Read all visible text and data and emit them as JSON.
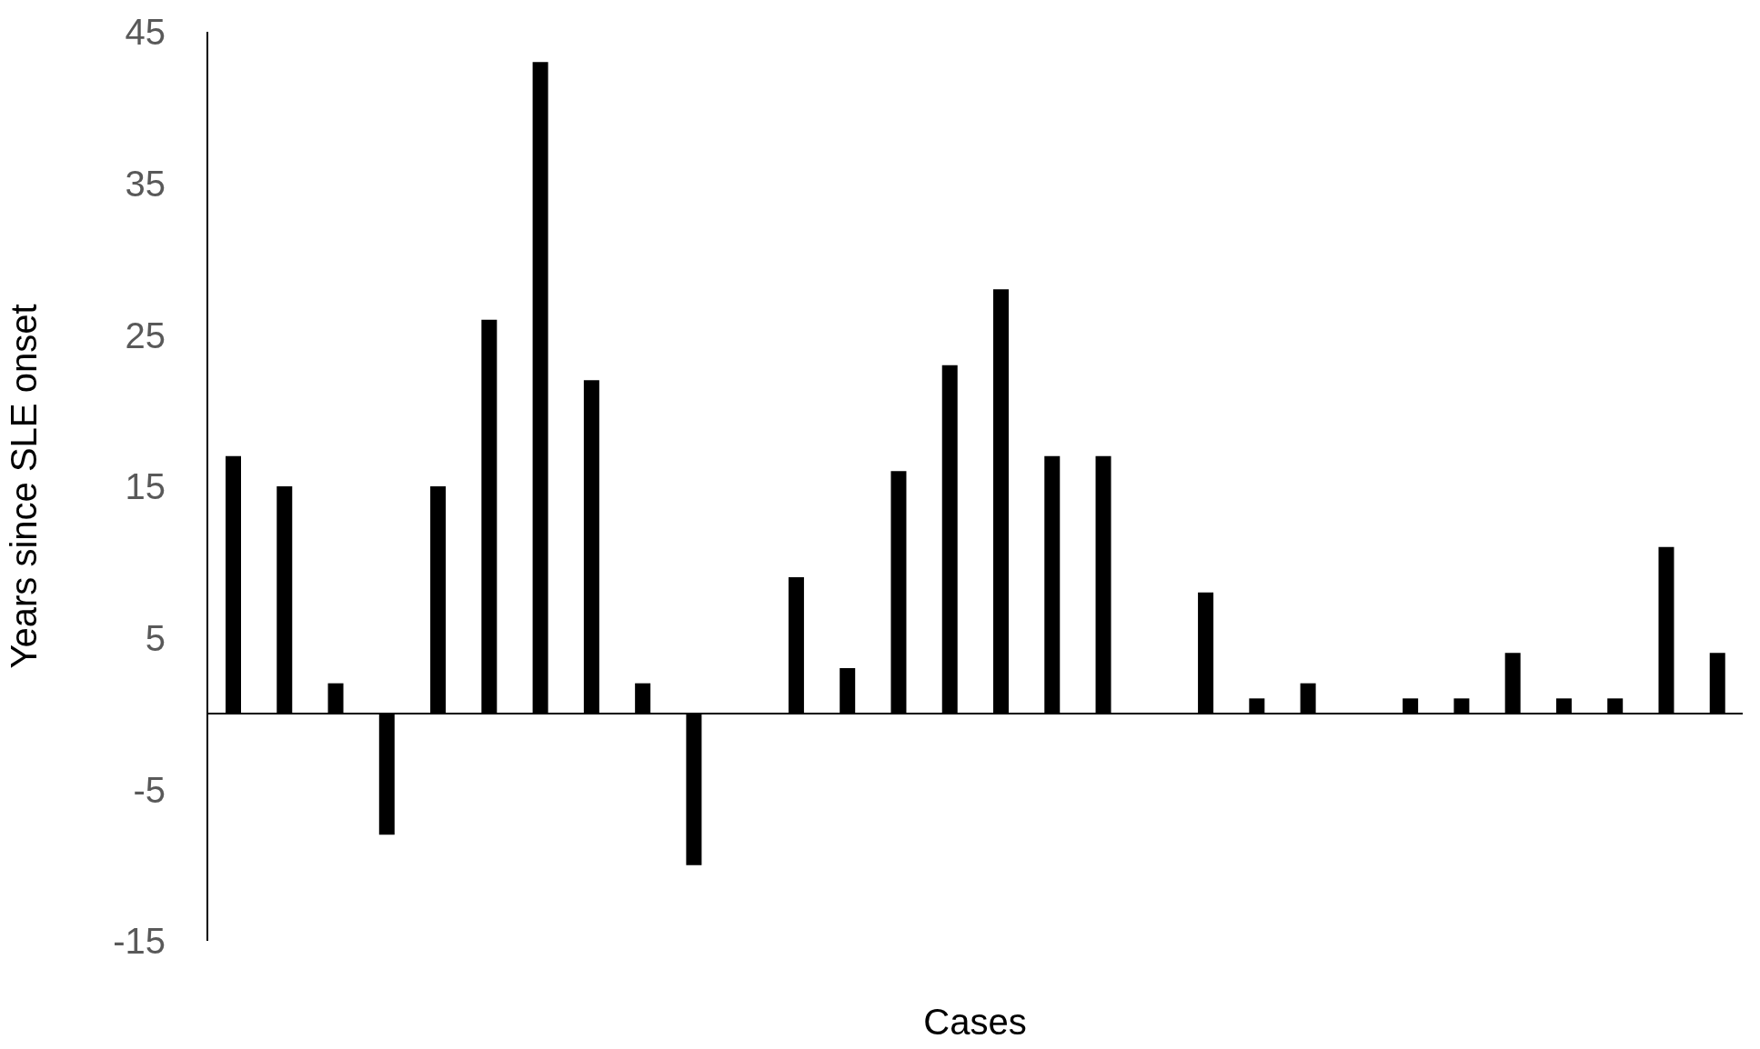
{
  "chart_data": {
    "type": "bar",
    "xlabel": "Cases",
    "ylabel": "Years since SLE onset",
    "categories": [
      null,
      null,
      null,
      null,
      null,
      null,
      null,
      null,
      null,
      null,
      null,
      null,
      null,
      null,
      null,
      null,
      null,
      null,
      null,
      null,
      null,
      null,
      null,
      null,
      null,
      null,
      null,
      null,
      null,
      null
    ],
    "values": [
      17,
      15,
      2,
      -8,
      15,
      26,
      43,
      22,
      2,
      -10,
      0,
      9,
      3,
      16,
      23,
      28,
      17,
      17,
      0,
      8,
      1,
      2,
      0,
      1,
      1,
      4,
      1,
      1,
      11,
      4
    ],
    "color": "#000000",
    "ylim": [
      -15,
      45
    ],
    "yticks": [
      -15,
      -5,
      5,
      15,
      25,
      35,
      45
    ],
    "grid": false,
    "legend": false
  }
}
